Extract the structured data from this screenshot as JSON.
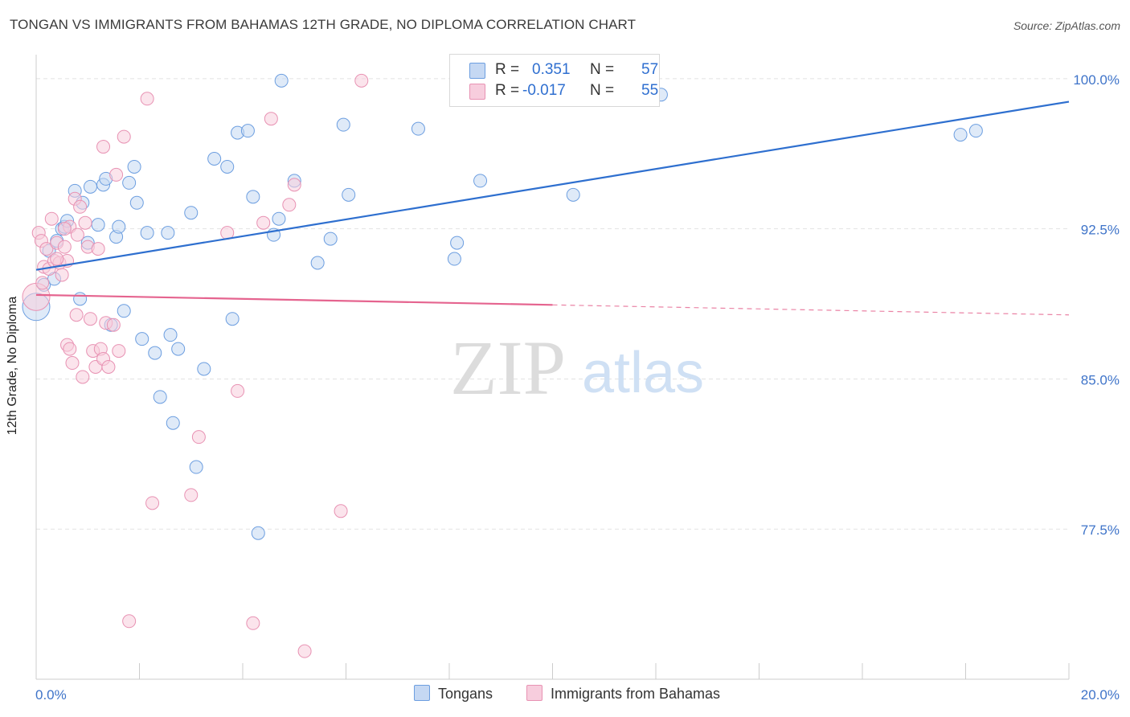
{
  "chart_data": {
    "type": "scatter",
    "title": "TONGAN VS IMMIGRANTS FROM BAHAMAS 12TH GRADE, NO DIPLOMA CORRELATION CHART",
    "source": "Source: ZipAtlas.com",
    "xlabel": "",
    "ylabel": "12th Grade, No Diploma",
    "xlim": [
      0.0,
      20.0
    ],
    "ylim": [
      70.0,
      101.2
    ],
    "x_tick_labels": [
      {
        "value": 0.0,
        "label": "0.0%"
      },
      {
        "value": 20.0,
        "label": "20.0%"
      }
    ],
    "y_tick_labels": [
      {
        "value": 100.0,
        "label": "100.0%"
      },
      {
        "value": 92.5,
        "label": "92.5%"
      },
      {
        "value": 85.0,
        "label": "85.0%"
      },
      {
        "value": 77.5,
        "label": "77.5%"
      }
    ],
    "grid": "horizontal dashed",
    "watermark": {
      "zip": "ZIP",
      "atlas": "atlas"
    },
    "legend": {
      "position": "top-center",
      "rows": [
        {
          "r_label": "R =",
          "r_value": "0.351",
          "n_label": "N =",
          "n_value": "57"
        },
        {
          "r_label": "R =",
          "r_value": "-0.017",
          "n_label": "N =",
          "n_value": "55"
        }
      ]
    },
    "series": [
      {
        "name": "Tongans",
        "color": "#6c9ee0",
        "fill": "#c5d8f3",
        "trend": {
          "x0": 0.0,
          "y0": 90.45,
          "x1": 20.0,
          "y1": 98.85,
          "dashed_from": null
        },
        "points": [
          {
            "x": 0.0,
            "y": 88.6,
            "big": true
          },
          {
            "x": 0.15,
            "y": 89.7
          },
          {
            "x": 0.25,
            "y": 91.4
          },
          {
            "x": 0.35,
            "y": 90.0
          },
          {
            "x": 0.4,
            "y": 91.9
          },
          {
            "x": 0.5,
            "y": 92.5
          },
          {
            "x": 0.55,
            "y": 92.6
          },
          {
            "x": 0.6,
            "y": 92.9
          },
          {
            "x": 0.75,
            "y": 94.4
          },
          {
            "x": 0.85,
            "y": 89.0
          },
          {
            "x": 0.9,
            "y": 93.8
          },
          {
            "x": 1.0,
            "y": 91.8
          },
          {
            "x": 1.05,
            "y": 94.6
          },
          {
            "x": 1.2,
            "y": 92.7
          },
          {
            "x": 1.3,
            "y": 94.7
          },
          {
            "x": 1.35,
            "y": 95.0
          },
          {
            "x": 1.45,
            "y": 87.7
          },
          {
            "x": 1.55,
            "y": 92.1
          },
          {
            "x": 1.6,
            "y": 92.6
          },
          {
            "x": 1.7,
            "y": 88.4
          },
          {
            "x": 1.8,
            "y": 94.8
          },
          {
            "x": 1.9,
            "y": 95.6
          },
          {
            "x": 1.95,
            "y": 93.8
          },
          {
            "x": 2.05,
            "y": 87.0
          },
          {
            "x": 2.15,
            "y": 92.3
          },
          {
            "x": 2.3,
            "y": 86.3
          },
          {
            "x": 2.4,
            "y": 84.1
          },
          {
            "x": 2.55,
            "y": 92.3
          },
          {
            "x": 2.6,
            "y": 87.2
          },
          {
            "x": 2.65,
            "y": 82.8
          },
          {
            "x": 2.75,
            "y": 86.5
          },
          {
            "x": 3.0,
            "y": 93.3
          },
          {
            "x": 3.1,
            "y": 80.6
          },
          {
            "x": 3.25,
            "y": 85.5
          },
          {
            "x": 3.45,
            "y": 96.0
          },
          {
            "x": 3.7,
            "y": 95.6
          },
          {
            "x": 3.8,
            "y": 88.0
          },
          {
            "x": 3.9,
            "y": 97.3
          },
          {
            "x": 4.1,
            "y": 97.4
          },
          {
            "x": 4.2,
            "y": 94.1
          },
          {
            "x": 4.3,
            "y": 77.3
          },
          {
            "x": 4.6,
            "y": 92.2
          },
          {
            "x": 4.7,
            "y": 93.0
          },
          {
            "x": 4.75,
            "y": 99.9
          },
          {
            "x": 5.0,
            "y": 94.9
          },
          {
            "x": 5.45,
            "y": 90.8
          },
          {
            "x": 5.7,
            "y": 92.0
          },
          {
            "x": 5.95,
            "y": 97.7
          },
          {
            "x": 6.05,
            "y": 94.2
          },
          {
            "x": 7.4,
            "y": 97.5
          },
          {
            "x": 8.1,
            "y": 91.0
          },
          {
            "x": 8.15,
            "y": 91.8
          },
          {
            "x": 8.6,
            "y": 94.9
          },
          {
            "x": 10.4,
            "y": 94.2
          },
          {
            "x": 12.1,
            "y": 99.2
          },
          {
            "x": 17.9,
            "y": 97.2
          },
          {
            "x": 18.2,
            "y": 97.4
          }
        ]
      },
      {
        "name": "Immigrants from Bahamas",
        "color": "#e892b3",
        "fill": "#f7cddd",
        "trend": {
          "x0": 0.0,
          "y0": 89.2,
          "x1": 20.0,
          "y1": 88.2,
          "dashed_from": 10.0
        },
        "points": [
          {
            "x": 0.0,
            "y": 89.1,
            "big": true
          },
          {
            "x": 0.05,
            "y": 92.3
          },
          {
            "x": 0.1,
            "y": 91.9
          },
          {
            "x": 0.15,
            "y": 90.6
          },
          {
            "x": 0.2,
            "y": 91.5
          },
          {
            "x": 0.25,
            "y": 90.5
          },
          {
            "x": 0.3,
            "y": 93.0
          },
          {
            "x": 0.35,
            "y": 90.9
          },
          {
            "x": 0.4,
            "y": 91.8
          },
          {
            "x": 0.45,
            "y": 90.8
          },
          {
            "x": 0.5,
            "y": 90.2
          },
          {
            "x": 0.55,
            "y": 91.6
          },
          {
            "x": 0.6,
            "y": 90.9
          },
          {
            "x": 0.65,
            "y": 92.6
          },
          {
            "x": 0.6,
            "y": 86.7
          },
          {
            "x": 0.65,
            "y": 86.5
          },
          {
            "x": 0.7,
            "y": 85.8
          },
          {
            "x": 0.75,
            "y": 94.0
          },
          {
            "x": 0.78,
            "y": 88.2
          },
          {
            "x": 0.8,
            "y": 92.2
          },
          {
            "x": 0.85,
            "y": 93.6
          },
          {
            "x": 0.9,
            "y": 85.1
          },
          {
            "x": 0.95,
            "y": 92.8
          },
          {
            "x": 1.0,
            "y": 91.6
          },
          {
            "x": 1.05,
            "y": 88.0
          },
          {
            "x": 1.1,
            "y": 86.4
          },
          {
            "x": 1.15,
            "y": 85.6
          },
          {
            "x": 1.2,
            "y": 91.5
          },
          {
            "x": 1.25,
            "y": 86.5
          },
          {
            "x": 1.3,
            "y": 86.0
          },
          {
            "x": 1.3,
            "y": 96.6
          },
          {
            "x": 1.35,
            "y": 87.8
          },
          {
            "x": 1.4,
            "y": 85.6
          },
          {
            "x": 1.5,
            "y": 87.7
          },
          {
            "x": 1.55,
            "y": 95.2
          },
          {
            "x": 1.6,
            "y": 86.4
          },
          {
            "x": 1.7,
            "y": 97.1
          },
          {
            "x": 1.8,
            "y": 72.9
          },
          {
            "x": 2.15,
            "y": 99.0
          },
          {
            "x": 2.25,
            "y": 78.8
          },
          {
            "x": 3.0,
            "y": 79.2
          },
          {
            "x": 3.15,
            "y": 82.1
          },
          {
            "x": 3.7,
            "y": 92.3
          },
          {
            "x": 3.9,
            "y": 84.4
          },
          {
            "x": 4.2,
            "y": 72.8
          },
          {
            "x": 4.4,
            "y": 92.8
          },
          {
            "x": 4.55,
            "y": 98.0
          },
          {
            "x": 4.9,
            "y": 93.7
          },
          {
            "x": 5.0,
            "y": 94.7
          },
          {
            "x": 5.2,
            "y": 71.4
          },
          {
            "x": 5.9,
            "y": 78.4
          },
          {
            "x": 6.3,
            "y": 99.9
          },
          {
            "x": 0.12,
            "y": 89.8
          },
          {
            "x": 0.4,
            "y": 91.0
          },
          {
            "x": 0.55,
            "y": 92.5
          }
        ]
      }
    ]
  },
  "bottom_legend": {
    "items": [
      {
        "label": "Tongans",
        "fill": "#c5d8f3",
        "stroke": "#6c9ee0"
      },
      {
        "label": "Immigrants from Bahamas",
        "fill": "#f7cddd",
        "stroke": "#e892b3"
      }
    ]
  },
  "colors": {
    "blue_trend": "#2e6fcf",
    "pink_trend": "#e5648f",
    "tick_label": "#3f74c9",
    "grid": "#e2e2e2",
    "axis": "#cccccc"
  }
}
